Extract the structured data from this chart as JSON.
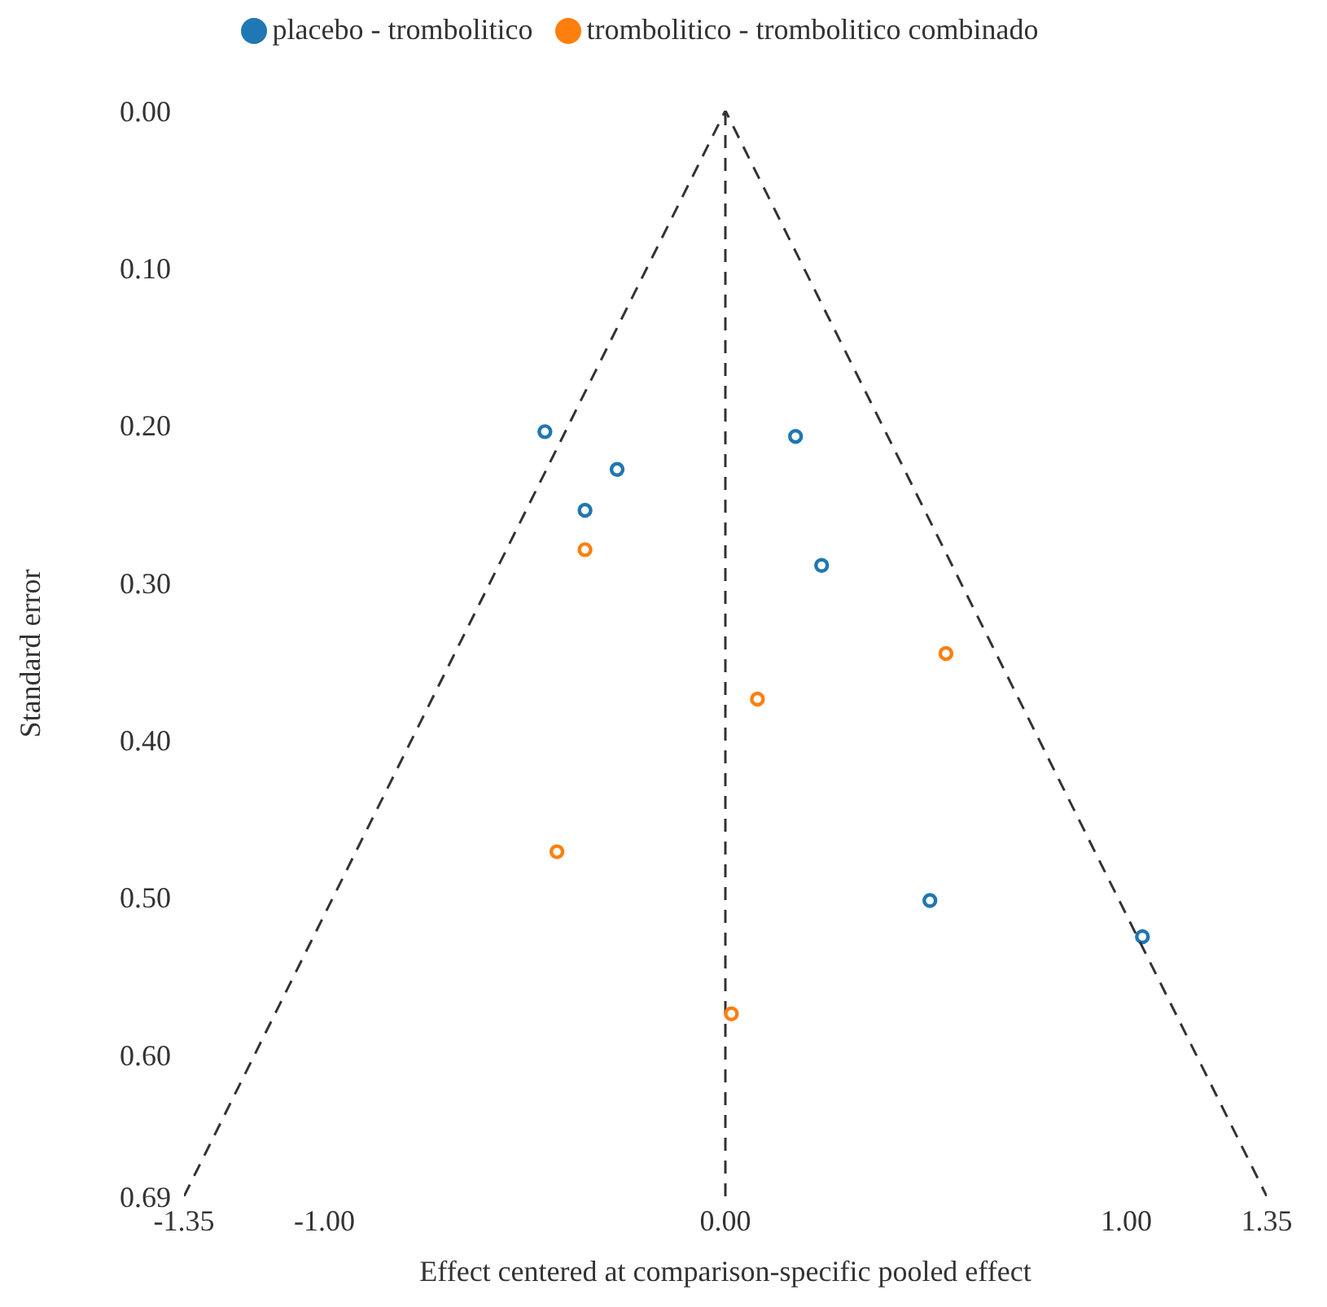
{
  "chart_data": {
    "type": "scatter",
    "xlabel": "Effect centered at comparison-specific pooled effect",
    "ylabel": "Standard error",
    "xlim": [
      -1.35,
      1.35
    ],
    "xticks": [
      {
        "value": -1.35,
        "label": "-1.35"
      },
      {
        "value": -1,
        "label": "-1.00"
      },
      {
        "value": 0,
        "label": "0.00"
      },
      {
        "value": 1,
        "label": "1.00"
      },
      {
        "value": 1.35,
        "label": "1.35"
      }
    ],
    "ylim": [
      0.69,
      0
    ],
    "yticks": [
      {
        "value": 0,
        "label": "0.00"
      },
      {
        "value": 0.1,
        "label": "0.10"
      },
      {
        "value": 0.2,
        "label": "0.20"
      },
      {
        "value": 0.3,
        "label": "0.30"
      },
      {
        "value": 0.4,
        "label": "0.40"
      },
      {
        "value": 0.5,
        "label": "0.50"
      },
      {
        "value": 0.6,
        "label": "0.60"
      },
      {
        "value": 0.69,
        "label": "0.69"
      }
    ],
    "grid": false,
    "legend": "top",
    "marker": "circle",
    "ref_lines": [
      {
        "axis": "x",
        "value": 0,
        "color": "#333333",
        "line_style": "dashed"
      }
    ],
    "series": [
      {
        "name": "placebo - trombolitico",
        "color": "#1f77b4",
        "x": [
          -0.45,
          -0.27,
          -0.35,
          0.175,
          0.24,
          0.51,
          1.04
        ],
        "values": [
          0.204,
          0.228,
          0.254,
          0.207,
          0.289,
          0.502,
          0.525
        ]
      },
      {
        "name": "trombolitico - trombolitico combinado",
        "color": "#ff7f0e",
        "x": [
          -0.35,
          0.08,
          0.55,
          -0.42,
          0.015
        ],
        "values": [
          0.279,
          0.374,
          0.345,
          0.471,
          0.574
        ]
      },
      {
        "type": "line",
        "color": "#333333",
        "line_style": "dashed",
        "marker": "none",
        "x": [
          -1.35,
          0,
          1.35
        ],
        "values": [
          0.69,
          0,
          0.69
        ]
      }
    ]
  }
}
